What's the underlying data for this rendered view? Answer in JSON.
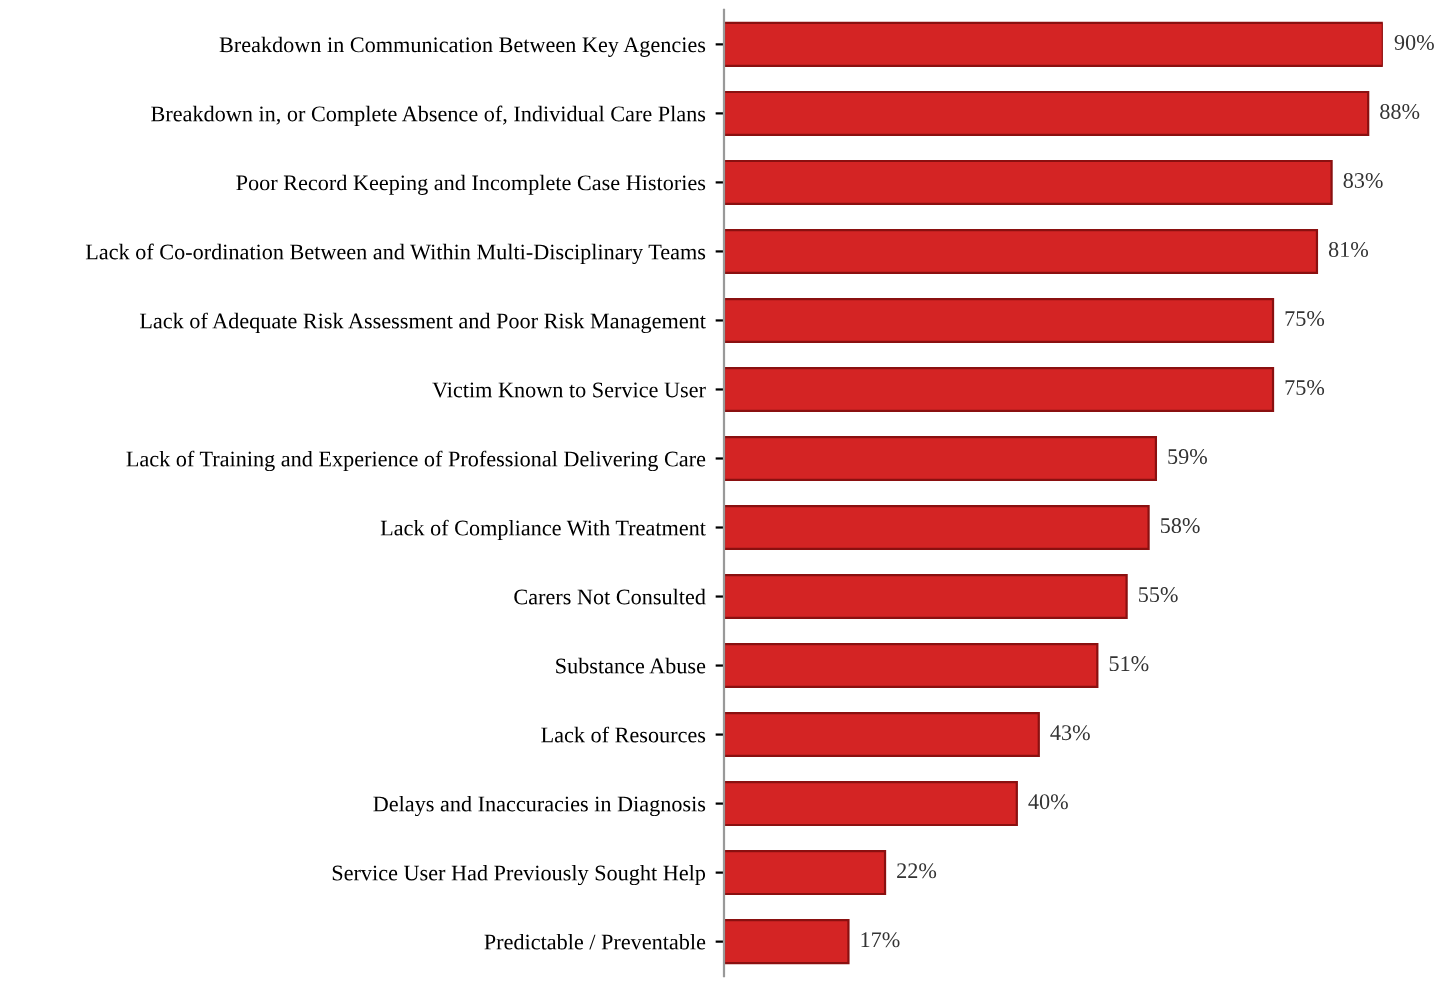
{
  "chart_data": {
    "type": "bar",
    "orientation": "horizontal",
    "categories": [
      "Breakdown in Communication Between Key Agencies",
      "Breakdown in, or Complete Absence of, Individual Care Plans",
      "Poor Record Keeping and Incomplete Case Histories",
      "Lack of Co-ordination Between and Within Multi-Disciplinary Teams",
      "Lack of Adequate Risk Assessment and Poor Risk Management",
      "Victim Known to Service User",
      "Lack of Training and Experience of Professional Delivering Care",
      "Lack of Compliance With Treatment",
      "Carers Not Consulted",
      "Substance Abuse",
      "Lack of Resources",
      "Delays and Inaccuracies in Diagnosis",
      "Service User Had Previously Sought Help",
      "Predictable / Preventable"
    ],
    "values": [
      90,
      88,
      83,
      81,
      75,
      75,
      59,
      58,
      55,
      51,
      43,
      40,
      22,
      17
    ],
    "value_labels": [
      "90%",
      "88%",
      "83%",
      "81%",
      "75%",
      "75%",
      "59%",
      "58%",
      "55%",
      "51%",
      "43%",
      "40%",
      "22%",
      "17%"
    ],
    "color": "#d42424"
  }
}
